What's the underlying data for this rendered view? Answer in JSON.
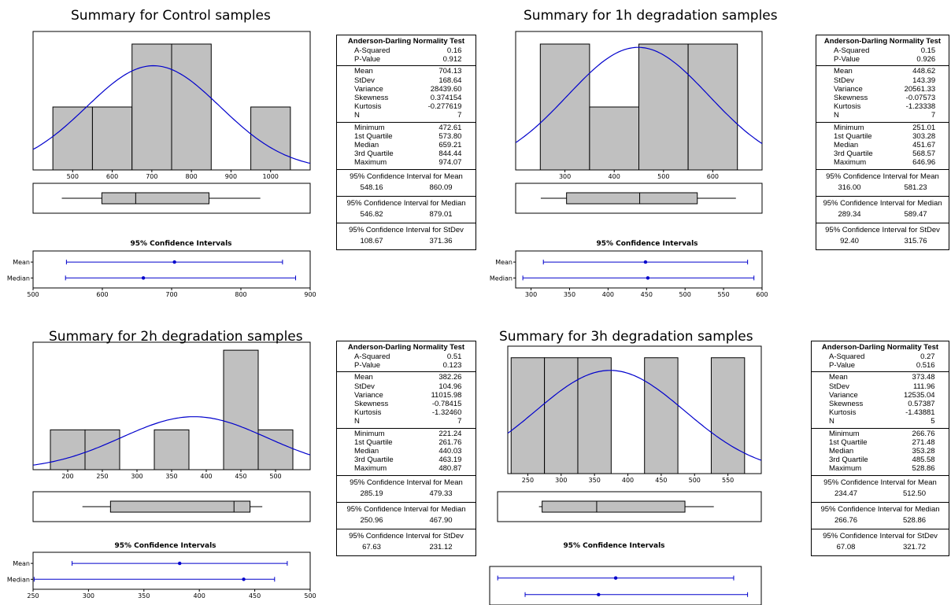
{
  "chart_data": [
    {
      "type": "bar",
      "title": "Summary for Control samples",
      "histogram": {
        "bin_edges": [
          450,
          550,
          650,
          750,
          850,
          950,
          1050
        ],
        "counts": [
          1,
          1,
          2,
          2,
          0,
          1
        ],
        "ticks": [
          500,
          600,
          700,
          800,
          900,
          1000
        ],
        "xlim": [
          400,
          1100
        ],
        "ylim": [
          0,
          2.2
        ]
      },
      "normal_curve": {
        "mean": 704.13,
        "sd": 168.64,
        "n": 7
      },
      "boxplot": {
        "min": 472.61,
        "q1": 573.8,
        "median": 659.21,
        "q3": 844.44,
        "max": 974.07
      },
      "ci": {
        "title": "95% Confidence Intervals",
        "xlim": [
          500,
          900
        ],
        "ticks": [
          500,
          600,
          700,
          800,
          900
        ],
        "rows": [
          {
            "label": "Mean",
            "low": 548.16,
            "center": 704.13,
            "high": 860.09
          },
          {
            "label": "Median",
            "low": 546.82,
            "center": 659.21,
            "high": 879.01
          }
        ]
      },
      "stats": {
        "test_title": "Anderson-Darling Normality Test",
        "normality": [
          {
            "label": "A-Squared",
            "value": "0.16"
          },
          {
            "label": "P-Value",
            "value": "0.912"
          }
        ],
        "moments": [
          {
            "label": "Mean",
            "value": "704.13"
          },
          {
            "label": "StDev",
            "value": "168.64"
          },
          {
            "label": "Variance",
            "value": "28439.60"
          },
          {
            "label": "Skewness",
            "value": "0.374154"
          },
          {
            "label": "Kurtosis",
            "value": "-0.277619"
          },
          {
            "label": "N",
            "value": "7"
          }
        ],
        "quantiles": [
          {
            "label": "Minimum",
            "value": "472.61"
          },
          {
            "label": "1st Quartile",
            "value": "573.80"
          },
          {
            "label": "Median",
            "value": "659.21"
          },
          {
            "label": "3rd Quartile",
            "value": "844.44"
          },
          {
            "label": "Maximum",
            "value": "974.07"
          }
        ],
        "intervals": [
          {
            "title": "95% Confidence Interval for Mean",
            "low": "548.16",
            "high": "860.09"
          },
          {
            "title": "95% Confidence Interval for Median",
            "low": "546.82",
            "high": "879.01"
          },
          {
            "title": "95% Confidence Interval for StDev",
            "low": "108.67",
            "high": "371.36"
          }
        ]
      }
    },
    {
      "type": "bar",
      "title": "Summary for 1h degradation samples",
      "histogram": {
        "bin_edges": [
          250,
          350,
          450,
          550,
          650
        ],
        "counts": [
          2,
          1,
          2,
          2
        ],
        "ticks": [
          300,
          400,
          500,
          600
        ],
        "xlim": [
          200,
          700
        ],
        "ylim": [
          0,
          2.2
        ]
      },
      "normal_curve": {
        "mean": 448.62,
        "sd": 143.39,
        "n": 7
      },
      "boxplot": {
        "min": 251.01,
        "q1": 303.28,
        "median": 451.67,
        "q3": 568.57,
        "max": 646.96
      },
      "ci": {
        "title": "95% Confidence Intervals",
        "xlim": [
          280,
          600
        ],
        "ticks": [
          300,
          350,
          400,
          450,
          500,
          550,
          600
        ],
        "rows": [
          {
            "label": "Mean",
            "low": 316.0,
            "center": 448.62,
            "high": 581.23
          },
          {
            "label": "Median",
            "low": 289.34,
            "center": 451.67,
            "high": 589.47
          }
        ]
      },
      "stats": {
        "test_title": "Anderson-Darling Normality Test",
        "normality": [
          {
            "label": "A-Squared",
            "value": "0.15"
          },
          {
            "label": "P-Value",
            "value": "0.926"
          }
        ],
        "moments": [
          {
            "label": "Mean",
            "value": "448.62"
          },
          {
            "label": "StDev",
            "value": "143.39"
          },
          {
            "label": "Variance",
            "value": "20561.33"
          },
          {
            "label": "Skewness",
            "value": "-0.07573"
          },
          {
            "label": "Kurtosis",
            "value": "-1.23338"
          },
          {
            "label": "N",
            "value": "7"
          }
        ],
        "quantiles": [
          {
            "label": "Minimum",
            "value": "251.01"
          },
          {
            "label": "1st Quartile",
            "value": "303.28"
          },
          {
            "label": "Median",
            "value": "451.67"
          },
          {
            "label": "3rd Quartile",
            "value": "568.57"
          },
          {
            "label": "Maximum",
            "value": "646.96"
          }
        ],
        "intervals": [
          {
            "title": "95% Confidence Interval for Mean",
            "low": "316.00",
            "high": "581.23"
          },
          {
            "title": "95% Confidence Interval for Median",
            "low": "289.34",
            "high": "589.47"
          },
          {
            "title": "95% Confidence Interval for StDev",
            "low": "92.40",
            "high": "315.76"
          }
        ]
      }
    },
    {
      "type": "bar",
      "title": "Summary for 2h degradation samples",
      "histogram": {
        "bin_edges": [
          175,
          225,
          275,
          325,
          375,
          425,
          475,
          525
        ],
        "counts": [
          1,
          1,
          0,
          1,
          0,
          3,
          1
        ],
        "ticks": [
          200,
          250,
          300,
          350,
          400,
          450,
          500
        ],
        "xlim": [
          150,
          550
        ],
        "ylim": [
          0,
          3.2
        ]
      },
      "normal_curve": {
        "mean": 382.26,
        "sd": 104.96,
        "n": 7
      },
      "boxplot": {
        "min": 221.24,
        "q1": 261.76,
        "median": 440.03,
        "q3": 463.19,
        "max": 480.87
      },
      "ci": {
        "title": "95% Confidence Intervals",
        "xlim": [
          250,
          500
        ],
        "ticks": [
          250,
          300,
          350,
          400,
          450,
          500
        ],
        "rows": [
          {
            "label": "Mean",
            "low": 285.19,
            "center": 382.26,
            "high": 479.33
          },
          {
            "label": "Median",
            "low": 250.96,
            "center": 440.03,
            "high": 467.9
          }
        ]
      },
      "stats": {
        "test_title": "Anderson-Darling Normality Test",
        "normality": [
          {
            "label": "A-Squared",
            "value": "0.51"
          },
          {
            "label": "P-Value",
            "value": "0.123"
          }
        ],
        "moments": [
          {
            "label": "Mean",
            "value": "382.26"
          },
          {
            "label": "StDev",
            "value": "104.96"
          },
          {
            "label": "Variance",
            "value": "11015.98"
          },
          {
            "label": "Skewness",
            "value": "-0.78415"
          },
          {
            "label": "Kurtosis",
            "value": "-1.32460"
          },
          {
            "label": "N",
            "value": "7"
          }
        ],
        "quantiles": [
          {
            "label": "Minimum",
            "value": "221.24"
          },
          {
            "label": "1st Quartile",
            "value": "261.76"
          },
          {
            "label": "Median",
            "value": "440.03"
          },
          {
            "label": "3rd Quartile",
            "value": "463.19"
          },
          {
            "label": "Maximum",
            "value": "480.87"
          }
        ],
        "intervals": [
          {
            "title": "95% Confidence Interval for Mean",
            "low": "285.19",
            "high": "479.33"
          },
          {
            "title": "95% Confidence Interval for Median",
            "low": "250.96",
            "high": "467.90"
          },
          {
            "title": "95% Confidence Interval for StDev",
            "low": "67.63",
            "high": "231.12"
          }
        ]
      }
    },
    {
      "type": "bar",
      "title": "Summary for 3h degradation samples",
      "histogram": {
        "bin_edges": [
          225,
          275,
          325,
          375,
          425,
          475,
          525,
          575
        ],
        "counts": [
          1,
          1,
          1,
          0,
          1,
          0,
          1
        ],
        "ticks": [
          250,
          300,
          350,
          400,
          450,
          500,
          550
        ],
        "xlim": [
          220,
          600
        ],
        "ylim": [
          0,
          1.1
        ]
      },
      "normal_curve": {
        "mean": 373.48,
        "sd": 111.96,
        "n": 5
      },
      "boxplot": {
        "min": 266.76,
        "q1": 271.48,
        "median": 353.28,
        "q3": 485.58,
        "max": 528.86
      },
      "ci": {
        "title": "95% Confidence Intervals",
        "xlim": [
          225,
          545
        ],
        "ticks": [],
        "rows": [
          {
            "label": "",
            "low": 234.47,
            "center": 373.48,
            "high": 512.5
          },
          {
            "label": "",
            "low": 266.76,
            "center": 353.28,
            "high": 528.86
          }
        ]
      },
      "stats": {
        "test_title": "Anderson-Darling Normality Test",
        "normality": [
          {
            "label": "A-Squared",
            "value": "0.27"
          },
          {
            "label": "P-Value",
            "value": "0.516"
          }
        ],
        "moments": [
          {
            "label": "Mean",
            "value": "373.48"
          },
          {
            "label": "StDev",
            "value": "111.96"
          },
          {
            "label": "Variance",
            "value": "12535.04"
          },
          {
            "label": "Skewness",
            "value": "0.57387"
          },
          {
            "label": "Kurtosis",
            "value": "-1.43881"
          },
          {
            "label": "N",
            "value": "5"
          }
        ],
        "quantiles": [
          {
            "label": "Minimum",
            "value": "266.76"
          },
          {
            "label": "1st Quartile",
            "value": "271.48"
          },
          {
            "label": "Median",
            "value": "353.28"
          },
          {
            "label": "3rd Quartile",
            "value": "485.58"
          },
          {
            "label": "Maximum",
            "value": "528.86"
          }
        ],
        "intervals": [
          {
            "title": "95% Confidence Interval for Mean",
            "low": "234.47",
            "high": "512.50"
          },
          {
            "title": "95% Confidence Interval for Median",
            "low": "266.76",
            "high": "528.86"
          },
          {
            "title": "95% Confidence Interval for StDev",
            "low": "67.08",
            "high": "321.72"
          }
        ]
      }
    }
  ],
  "style": {
    "bar_fill": "#c0c0c0",
    "curve_color": "#0000cc",
    "ci_color": "#0000cc"
  }
}
